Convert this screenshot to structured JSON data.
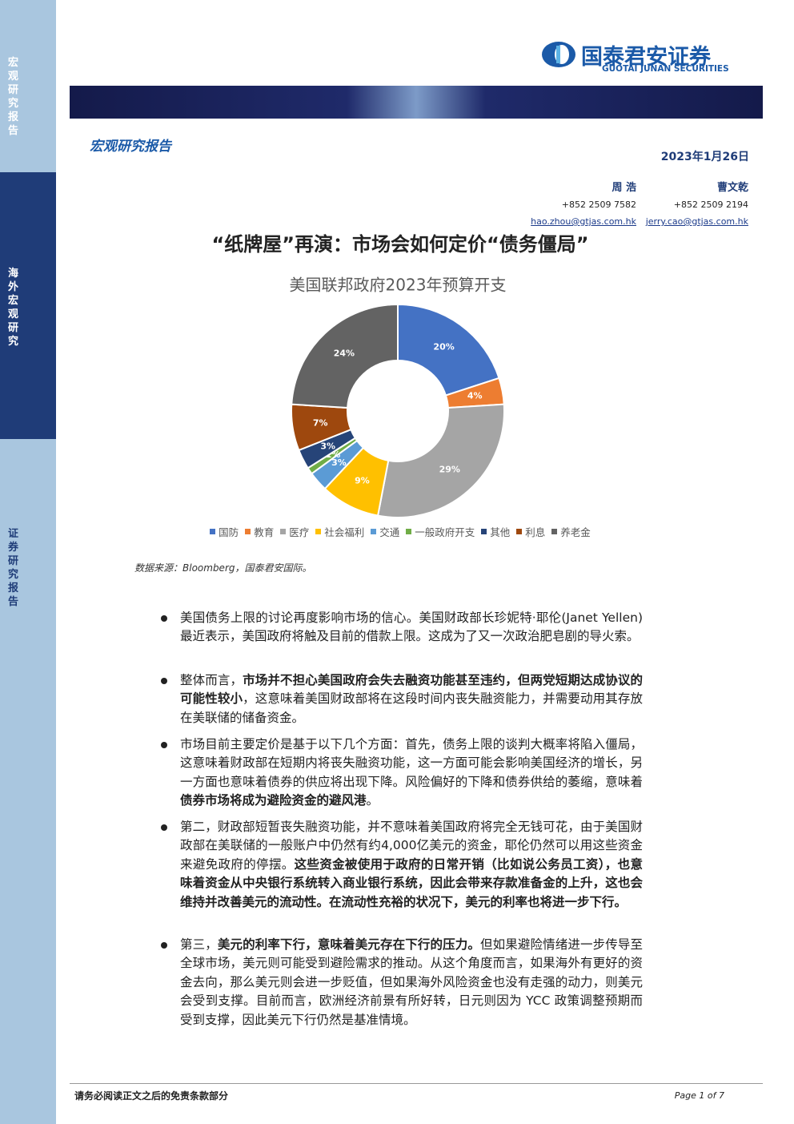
{
  "sidebar": {
    "top": "宏观研究报告",
    "middle": "海外宏观研究",
    "bottom": "证券研究报告"
  },
  "header": {
    "logo": "国泰君安证券",
    "logo_en": "GUOTAI JUNAN SECURITIES",
    "report_type": "宏观研究报告",
    "date": "2023年1月26日"
  },
  "authors": [
    {
      "name": "周 浩",
      "phone": "+852 2509 7582",
      "email": "hao.zhou@gtjas.com.hk"
    },
    {
      "name": "曹文乾",
      "phone": "+852 2509 2194",
      "email": "jerry.cao@gtjas.com.hk"
    }
  ],
  "title": "“纸牌屋”再演：市场会如何定价“债务僵局”",
  "chart_data": {
    "type": "pie",
    "title": "美国联邦政府2023年预算开支",
    "categories": [
      "国防",
      "教育",
      "医疗",
      "社会福利",
      "交通",
      "一般政府开支",
      "其他",
      "利息",
      "养老金"
    ],
    "values": [
      20,
      4,
      29,
      9,
      3,
      1,
      3,
      7,
      24
    ],
    "value_labels": [
      "20%",
      "4%",
      "29%",
      "9%",
      "3%",
      "1%",
      "3%",
      "7%",
      "24%"
    ],
    "colors": [
      "#4472c4",
      "#ed7d31",
      "#a5a5a5",
      "#ffc000",
      "#5b9bd5",
      "#70ad47",
      "#264478",
      "#9e480e",
      "#636363"
    ],
    "donut": true,
    "legend": "bottom"
  },
  "source": "数据来源：Bloomberg，国泰君安国际。",
  "bullets": [
    {
      "runs": [
        {
          "text": "美国债务上限的讨论再度影响市场的信心。美国财政部长珍妮特·耶伦(Janet Yellen)最近表示，美国政府将触及目前的借款上限。这成为了又一次政治肥皂剧的导火索。",
          "bold": false
        }
      ]
    },
    {
      "runs": [
        {
          "text": "整体而言，",
          "bold": false
        },
        {
          "text": "市场并不担心美国政府会失去融资功能甚至违约，但两党短期达成协议的可能性较小",
          "bold": true
        },
        {
          "text": "，这意味着美国财政部将在这段时间内丧失融资能力，并需要动用其存放在美联储的储备资金。",
          "bold": false
        }
      ]
    },
    {
      "runs": [
        {
          "text": "市场目前主要定价是基于以下几个方面：首先，债务上限的谈判大概率将陷入僵局，这意味着财政部在短期内将丧失融资功能，这一方面可能会影响美国经济的增长，另一方面也意味着债券的供应将出现下降。风险偏好的下降和债券供给的萎缩，意味着",
          "bold": false
        },
        {
          "text": "债券市场将成为避险资金的避风港",
          "bold": true
        },
        {
          "text": "。",
          "bold": false
        }
      ]
    },
    {
      "runs": [
        {
          "text": "第二，财政部短暂丧失融资功能，并不意味着美国政府将完全无钱可花，由于美国财政部在美联储的一般账户中仍然有约4,000亿美元的资金，耶伦仍然可以用这些资金来避免政府的停摆。",
          "bold": false
        },
        {
          "text": "这些资金被使用于政府的日常开销（比如说公务员工资），也意味着资金从中央银行系统转入商业银行系统，因此会带来存款准备金的上升，这也会维持并改善美元的流动性。在流动性充裕的状况下，美元的利率也将进一步下行。",
          "bold": true
        }
      ]
    },
    {
      "runs": [
        {
          "text": "第三，",
          "bold": false
        },
        {
          "text": "美元的利率下行，意味着美元存在下行的压力。",
          "bold": true
        },
        {
          "text": "但如果避险情绪进一步传导至全球市场，美元则可能受到避险需求的推动。从这个角度而言，如果海外有更好的资金去向，那么美元则会进一步贬值，但如果海外风险资金也没有走强的动力，则美元会受到支撑。目前而言，欧洲经济前景有所好转，日元则因为 YCC 政策调整预期而受到支撑，因此美元下行仍然是基准情境。",
          "bold": false
        }
      ]
    }
  ],
  "footer": {
    "disclaimer": "请务必阅读正文之后的免责条款部分",
    "page": "Page 1 of 7"
  }
}
